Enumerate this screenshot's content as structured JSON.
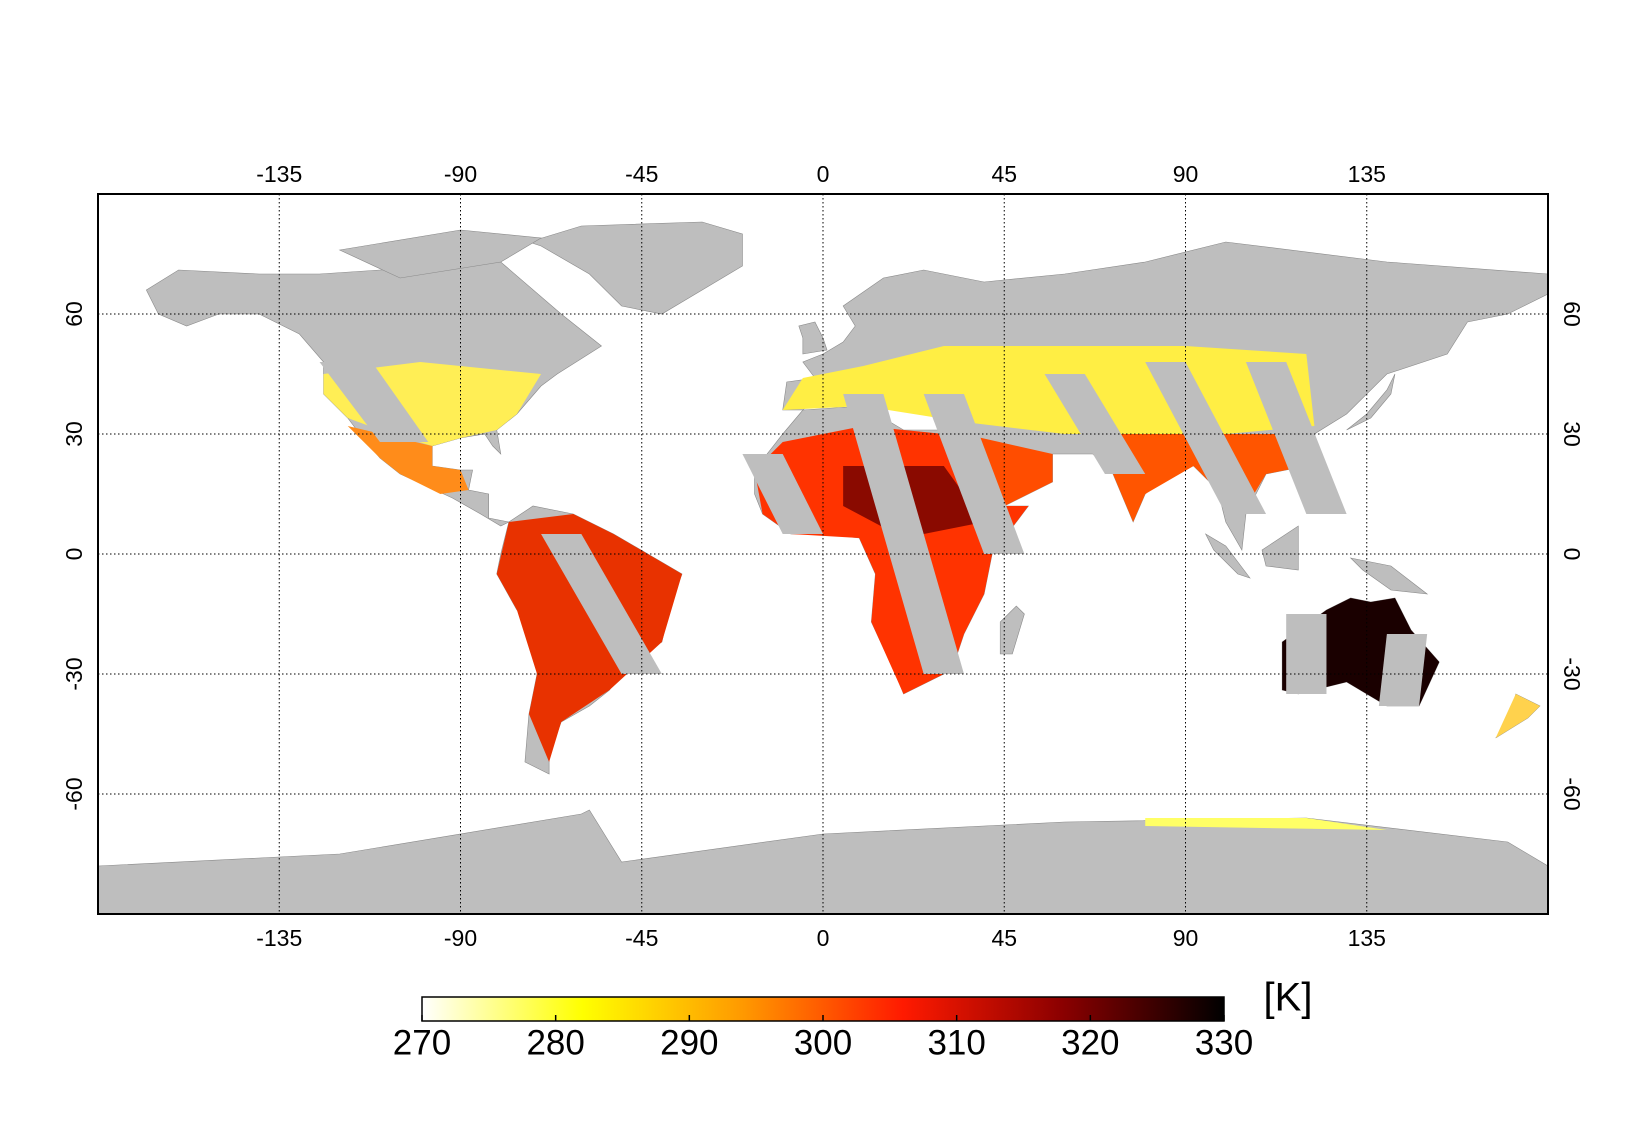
{
  "map": {
    "lon_lim": [
      -180,
      180
    ],
    "lat_lim": [
      -90,
      90
    ],
    "lon_ticks": [
      -135,
      -90,
      -45,
      0,
      45,
      90,
      135
    ],
    "lat_ticks": [
      -60,
      -30,
      0,
      30,
      60
    ],
    "grid": true,
    "land_color": "#bebebe",
    "colorbar": {
      "lim": [
        270,
        330
      ],
      "ticks": [
        270,
        280,
        290,
        300,
        310,
        320,
        330
      ],
      "label": "[K]",
      "colormap": [
        "#ffffff",
        "#ffff00",
        "#ff9900",
        "#ff1a00",
        "#8a0000",
        "#000000"
      ]
    }
  }
}
